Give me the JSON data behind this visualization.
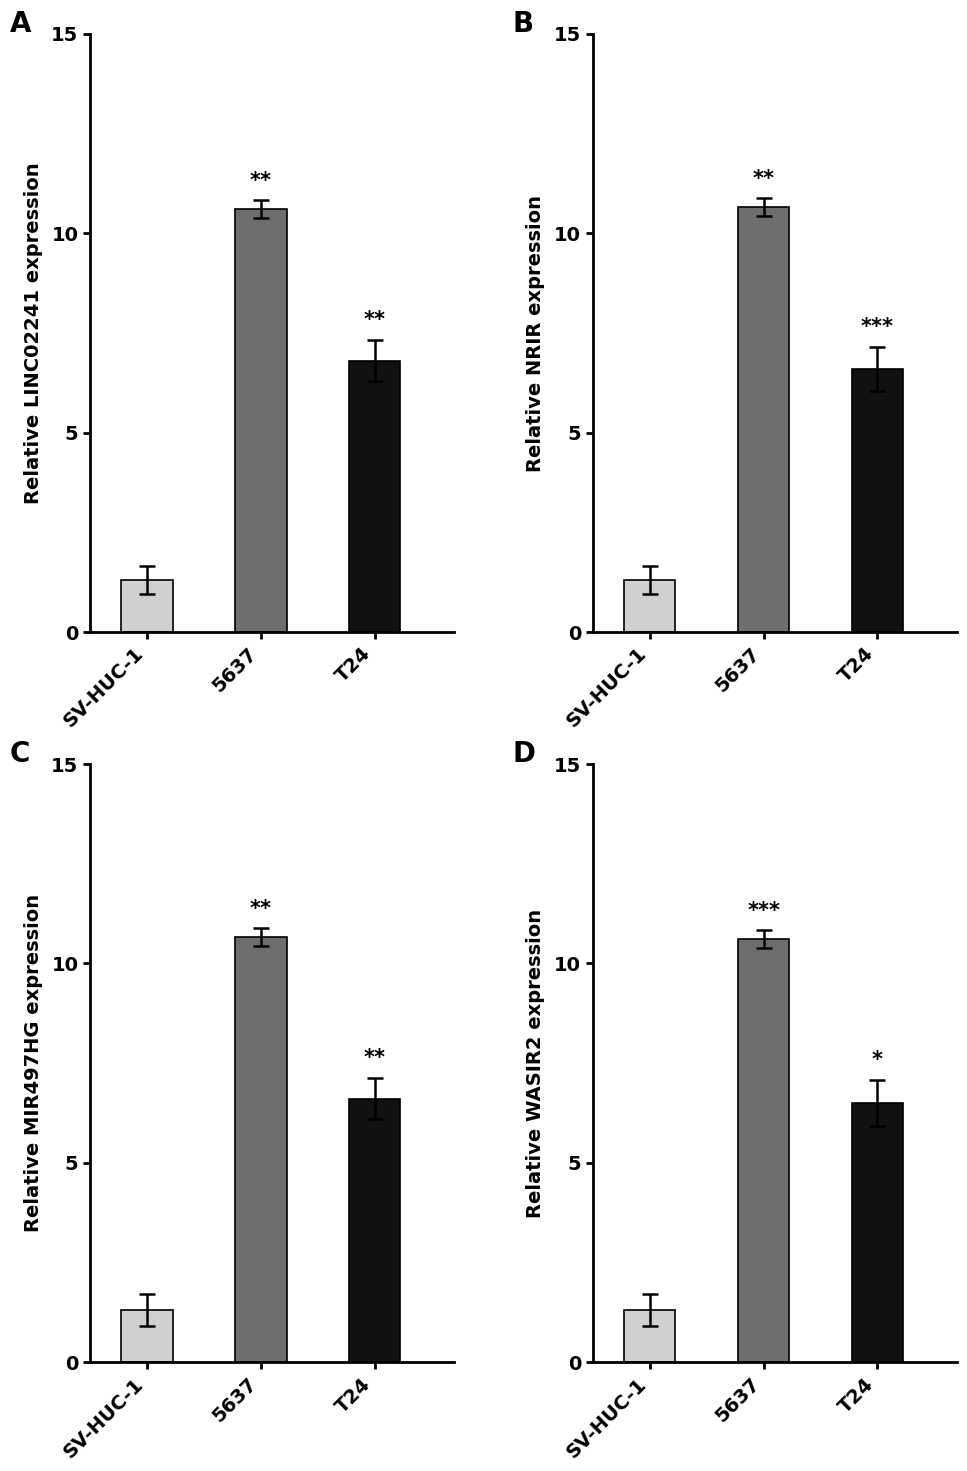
{
  "panels": [
    {
      "label": "A",
      "ylabel": "Relative LINC02241 expression",
      "categories": [
        "SV-HUC-1",
        "5637",
        "T24"
      ],
      "values": [
        1.3,
        10.6,
        6.8
      ],
      "errors": [
        0.35,
        0.22,
        0.52
      ],
      "bar_colors": [
        "#d0d0d0",
        "#6e6e6e",
        "#111111"
      ],
      "significance": [
        "",
        "**",
        "**"
      ],
      "ylim": [
        0,
        15
      ],
      "yticks": [
        0,
        5,
        10,
        15
      ]
    },
    {
      "label": "B",
      "ylabel": "Relative NRIR expression",
      "categories": [
        "SV-HUC-1",
        "5637",
        "T24"
      ],
      "values": [
        1.3,
        10.65,
        6.6
      ],
      "errors": [
        0.35,
        0.22,
        0.55
      ],
      "bar_colors": [
        "#d0d0d0",
        "#6e6e6e",
        "#111111"
      ],
      "significance": [
        "",
        "**",
        "***"
      ],
      "ylim": [
        0,
        15
      ],
      "yticks": [
        0,
        5,
        10,
        15
      ]
    },
    {
      "label": "C",
      "ylabel": "Relative MIR497HG expression",
      "categories": [
        "SV-HUC-1",
        "5637",
        "T24"
      ],
      "values": [
        1.3,
        10.65,
        6.6
      ],
      "errors": [
        0.4,
        0.22,
        0.52
      ],
      "bar_colors": [
        "#d0d0d0",
        "#6e6e6e",
        "#111111"
      ],
      "significance": [
        "",
        "**",
        "**"
      ],
      "ylim": [
        0,
        15
      ],
      "yticks": [
        0,
        5,
        10,
        15
      ]
    },
    {
      "label": "D",
      "ylabel": "Relative WASIR2 expression",
      "categories": [
        "SV-HUC-1",
        "5637",
        "T24"
      ],
      "values": [
        1.3,
        10.6,
        6.5
      ],
      "errors": [
        0.4,
        0.22,
        0.58
      ],
      "bar_colors": [
        "#d0d0d0",
        "#6e6e6e",
        "#111111"
      ],
      "significance": [
        "",
        "***",
        "*"
      ],
      "ylim": [
        0,
        15
      ],
      "yticks": [
        0,
        5,
        10,
        15
      ]
    }
  ],
  "background_color": "#ffffff",
  "bar_width": 0.45,
  "tick_fontsize": 14,
  "ylabel_fontsize": 14,
  "sig_fontsize": 15,
  "panel_label_fontsize": 20,
  "axis_linewidth": 2.0,
  "x_positions": [
    0.5,
    1.5,
    2.5
  ],
  "xlim": [
    0,
    3.2
  ]
}
